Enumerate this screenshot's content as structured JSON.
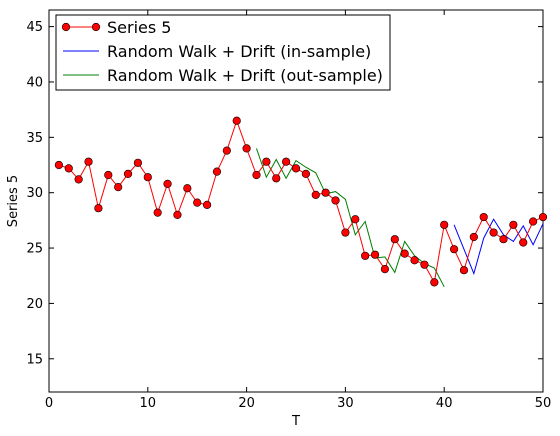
{
  "chart_data": {
    "type": "line",
    "title": "",
    "xlabel": "T",
    "ylabel": "Series 5",
    "xlim": [
      0,
      50
    ],
    "ylim": [
      12,
      46.5
    ],
    "xticks": [
      0,
      10,
      20,
      30,
      40,
      50
    ],
    "yticks": [
      15,
      20,
      25,
      30,
      35,
      40,
      45
    ],
    "grid": false,
    "legend_position": "top-left",
    "series": [
      {
        "name": "Series 5",
        "color": "#ff0000",
        "marker": "circle",
        "x": [
          1,
          2,
          3,
          4,
          5,
          6,
          7,
          8,
          9,
          10,
          11,
          12,
          13,
          14,
          15,
          16,
          17,
          18,
          19,
          20,
          21,
          22,
          23,
          24,
          25,
          26,
          27,
          28,
          29,
          30,
          31,
          32,
          33,
          34,
          35,
          36,
          37,
          38,
          39,
          40,
          41,
          42,
          43,
          44,
          45,
          46,
          47,
          48,
          49,
          50
        ],
        "values": [
          32.5,
          32.2,
          31.2,
          32.8,
          28.6,
          31.6,
          30.5,
          31.7,
          32.7,
          31.4,
          28.2,
          30.8,
          28.0,
          30.4,
          29.1,
          28.9,
          31.9,
          33.8,
          36.5,
          34.0,
          31.6,
          32.8,
          31.3,
          32.8,
          32.2,
          31.7,
          29.8,
          30.0,
          29.3,
          26.4,
          27.6,
          24.3,
          24.4,
          23.1,
          25.8,
          24.5,
          23.9,
          23.5,
          21.9,
          27.1,
          24.9,
          23.0,
          26.0,
          27.8,
          26.4,
          25.8,
          27.1,
          25.5,
          27.4,
          27.8
        ]
      },
      {
        "name": "Random Walk + Drift (in-sample)",
        "color": "#0000ff",
        "marker": "none",
        "x": [
          41,
          42,
          43,
          44,
          45,
          46,
          47,
          48,
          49,
          50
        ],
        "values": [
          27.1,
          24.9,
          22.7,
          25.9,
          27.6,
          26.2,
          25.6,
          27.0,
          25.3,
          27.2
        ]
      },
      {
        "name": "Random Walk + Drift (out-sample)",
        "color": "#008000",
        "marker": "none",
        "x": [
          21,
          22,
          23,
          24,
          25,
          26,
          27,
          28,
          29,
          30,
          31,
          32,
          33,
          34,
          35,
          36,
          37,
          38,
          39,
          40
        ],
        "values": [
          34.0,
          31.4,
          33.0,
          31.3,
          32.9,
          32.3,
          31.8,
          29.9,
          30.1,
          29.4,
          26.2,
          27.4,
          24.1,
          24.2,
          22.8,
          25.6,
          24.3,
          23.6,
          23.2,
          21.5
        ]
      }
    ]
  }
}
